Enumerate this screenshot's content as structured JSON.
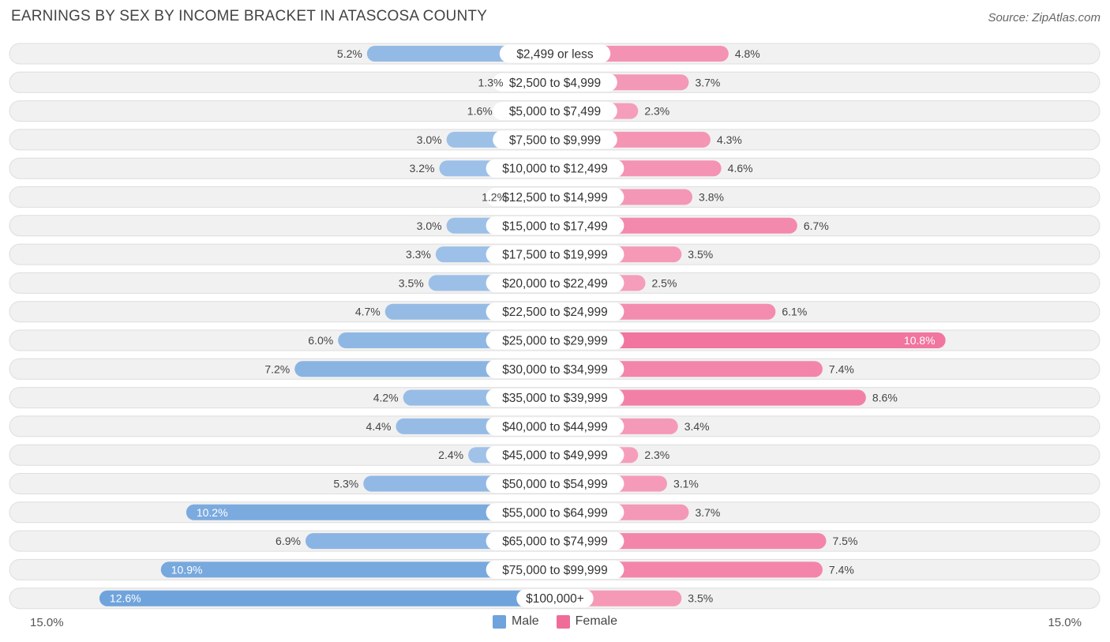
{
  "chart_data": {
    "type": "bar",
    "orientation": "horizontal-diverging",
    "title": "EARNINGS BY SEX BY INCOME BRACKET IN ATASCOSA COUNTY",
    "source": "Source: ZipAtlas.com",
    "axis_min_label": "15.0%",
    "axis_max_label": "15.0%",
    "xlim": [
      -15.0,
      15.0
    ],
    "categories": [
      "$2,499 or less",
      "$2,500 to $4,999",
      "$5,000 to $7,499",
      "$7,500 to $9,999",
      "$10,000 to $12,499",
      "$12,500 to $14,999",
      "$15,000 to $17,499",
      "$17,500 to $19,999",
      "$20,000 to $22,499",
      "$22,500 to $24,999",
      "$25,000 to $29,999",
      "$30,000 to $34,999",
      "$35,000 to $39,999",
      "$40,000 to $44,999",
      "$45,000 to $49,999",
      "$50,000 to $54,999",
      "$55,000 to $64,999",
      "$65,000 to $74,999",
      "$75,000 to $99,999",
      "$100,000+"
    ],
    "series": [
      {
        "name": "Male",
        "color": "#6fa3dc",
        "values": [
          5.2,
          1.3,
          1.6,
          3.0,
          3.2,
          1.2,
          3.0,
          3.3,
          3.5,
          4.7,
          6.0,
          7.2,
          4.2,
          4.4,
          2.4,
          5.3,
          10.2,
          6.9,
          10.9,
          12.6
        ],
        "labels": [
          "5.2%",
          "1.3%",
          "1.6%",
          "3.0%",
          "3.2%",
          "1.2%",
          "3.0%",
          "3.3%",
          "3.5%",
          "4.7%",
          "6.0%",
          "7.2%",
          "4.2%",
          "4.4%",
          "2.4%",
          "5.3%",
          "10.2%",
          "6.9%",
          "10.9%",
          "12.6%"
        ]
      },
      {
        "name": "Female",
        "color": "#f06c98",
        "values": [
          4.8,
          3.7,
          2.3,
          4.3,
          4.6,
          3.8,
          6.7,
          3.5,
          2.5,
          6.1,
          10.8,
          7.4,
          8.6,
          3.4,
          2.3,
          3.1,
          3.7,
          7.5,
          7.4,
          3.5
        ],
        "labels": [
          "4.8%",
          "3.7%",
          "2.3%",
          "4.3%",
          "4.6%",
          "3.8%",
          "6.7%",
          "3.5%",
          "2.5%",
          "6.1%",
          "10.8%",
          "7.4%",
          "8.6%",
          "3.4%",
          "2.3%",
          "3.1%",
          "3.7%",
          "7.5%",
          "7.4%",
          "3.5%"
        ]
      }
    ],
    "legend": [
      "Male",
      "Female"
    ]
  }
}
